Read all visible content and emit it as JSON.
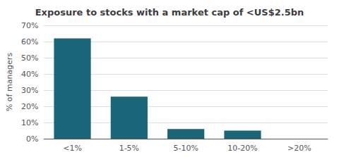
{
  "chart_data": {
    "type": "bar",
    "title": "Exposure to stocks with a market cap of <US$2.5bn",
    "categories": [
      "<1%",
      "1-5%",
      "5-10%",
      "10-20%",
      ">20%"
    ],
    "values": [
      62,
      26,
      6,
      5,
      0
    ],
    "color": "#1a6678",
    "ylabel": "% of managers",
    "ylim": [
      0,
      70
    ],
    "yticks": [
      {
        "value": 0,
        "label": "0%"
      },
      {
        "value": 10,
        "label": "10%"
      },
      {
        "value": 20,
        "label": "20%"
      },
      {
        "value": 30,
        "label": "30%"
      },
      {
        "value": 40,
        "label": "40%"
      },
      {
        "value": 50,
        "label": "50%"
      },
      {
        "value": 60,
        "label": "60%"
      },
      {
        "value": 70,
        "label": "70%"
      }
    ],
    "grid": true
  }
}
